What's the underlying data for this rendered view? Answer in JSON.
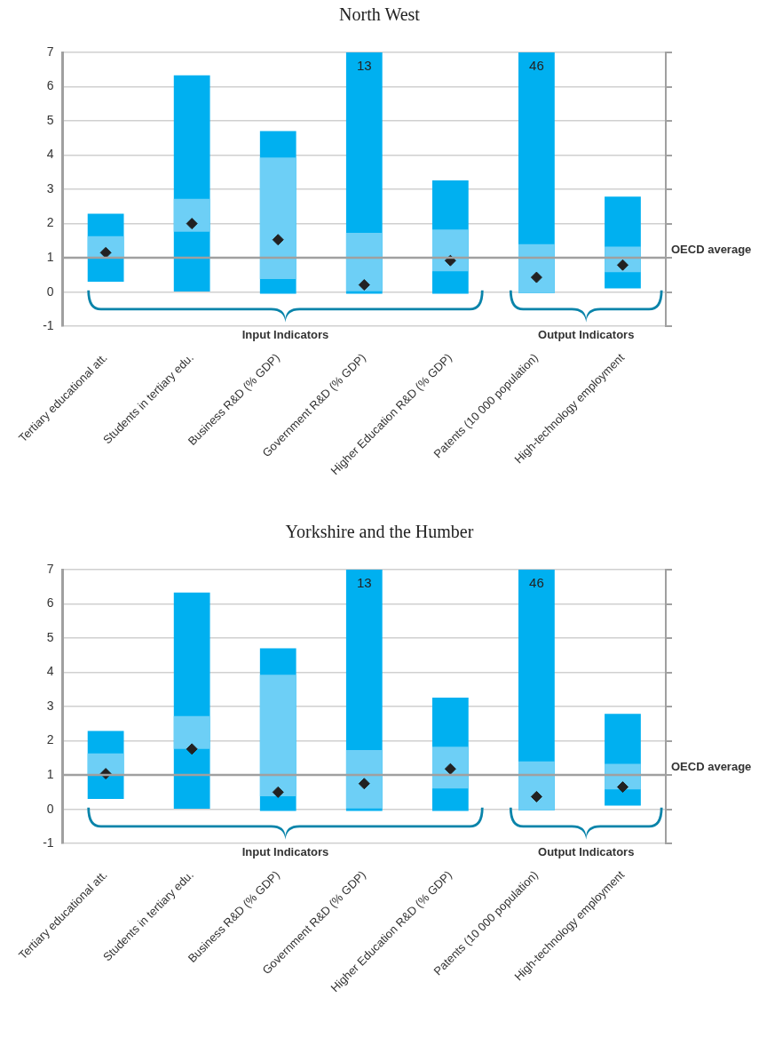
{
  "chart_data": [
    {
      "type": "bar",
      "title": "North West",
      "grid": "y",
      "categories": [
        "Tertiary educational att.",
        "Students in tertiary edu.",
        "Business R&D (% GDP)",
        "Government R&D (% GDP)",
        "Higher Education R&D (% GDP)",
        "Patents (10 000 population)",
        "High-technology employment"
      ],
      "series": [
        {
          "color": "#00b0f0",
          "base": [
            0.3,
            0,
            -0.05,
            -0.05,
            -0.05,
            -0.03,
            0.11
          ],
          "values": [
            1.99,
            6.33,
            4.75,
            7.05,
            3.31,
            7.03,
            2.68
          ]
        },
        {
          "color": "#6dcff6",
          "base": [
            1.0,
            1.76,
            0.38,
            0.02,
            0.61,
            -0.03,
            0.58
          ],
          "values": [
            0.63,
            0.96,
            3.55,
            1.71,
            1.22,
            1.43,
            0.75
          ]
        },
        {
          "type": "scatter",
          "color": "#222222",
          "marker": "diamond",
          "x": [
            "Tertiary educational att.",
            "Students in tertiary edu.",
            "Business R&D (% GDP)",
            "Government R&D (% GDP)",
            "Higher Education R&D (% GDP)",
            "Patents (10 000 population)",
            "High-technology employment"
          ],
          "values": [
            1.15,
            2.0,
            1.53,
            0.21,
            0.92,
            0.43,
            0.79
          ]
        }
      ],
      "ylim": [
        -1,
        7
      ],
      "yticks": [
        -1,
        0,
        1,
        2,
        3,
        4,
        5,
        6,
        7
      ],
      "ref_lines": [
        {
          "axis": "y",
          "value": 1,
          "label": "OECD average",
          "color": "#a0a0a0"
        }
      ],
      "annotations": [
        "Input Indicators",
        "Output Indicators",
        {
          "text": "13",
          "x": "Government R&D (% GDP)",
          "y": 7
        },
        {
          "text": "46",
          "x": "Patents (10 000 population)",
          "y": 7
        }
      ]
    },
    {
      "type": "bar",
      "title": "Yorkshire and the Humber",
      "grid": "y",
      "categories": [
        "Tertiary educational att.",
        "Students in tertiary edu.",
        "Business R&D (% GDP)",
        "Government R&D (% GDP)",
        "Higher Education R&D (% GDP)",
        "Patents (10 000 population)",
        "High-technology employment"
      ],
      "series": [
        {
          "color": "#00b0f0",
          "base": [
            0.3,
            0,
            -0.05,
            -0.05,
            -0.05,
            -0.03,
            0.11
          ],
          "values": [
            1.99,
            6.33,
            4.75,
            7.05,
            3.31,
            7.03,
            2.68
          ]
        },
        {
          "color": "#6dcff6",
          "base": [
            1.0,
            1.76,
            0.38,
            0.02,
            0.61,
            -0.03,
            0.58
          ],
          "values": [
            0.63,
            0.96,
            3.55,
            1.71,
            1.22,
            1.43,
            0.75
          ]
        },
        {
          "type": "scatter",
          "color": "#222222",
          "marker": "diamond",
          "x": [
            "Tertiary educational att.",
            "Students in tertiary edu.",
            "Business R&D (% GDP)",
            "Government R&D (% GDP)",
            "Higher Education R&D (% GDP)",
            "Patents (10 000 population)",
            "High-technology employment"
          ],
          "values": [
            1.04,
            1.76,
            0.5,
            0.75,
            1.18,
            0.37,
            0.65
          ]
        }
      ],
      "ylim": [
        -1,
        7
      ],
      "yticks": [
        -1,
        0,
        1,
        2,
        3,
        4,
        5,
        6,
        7
      ],
      "ref_lines": [
        {
          "axis": "y",
          "value": 1,
          "label": "OECD average",
          "color": "#a0a0a0"
        }
      ],
      "annotations": [
        "Input Indicators",
        "Output Indicators",
        {
          "text": "13",
          "x": "Government R&D (% GDP)",
          "y": 7
        },
        {
          "text": "46",
          "x": "Patents (10 000 population)",
          "y": 7
        }
      ]
    }
  ]
}
